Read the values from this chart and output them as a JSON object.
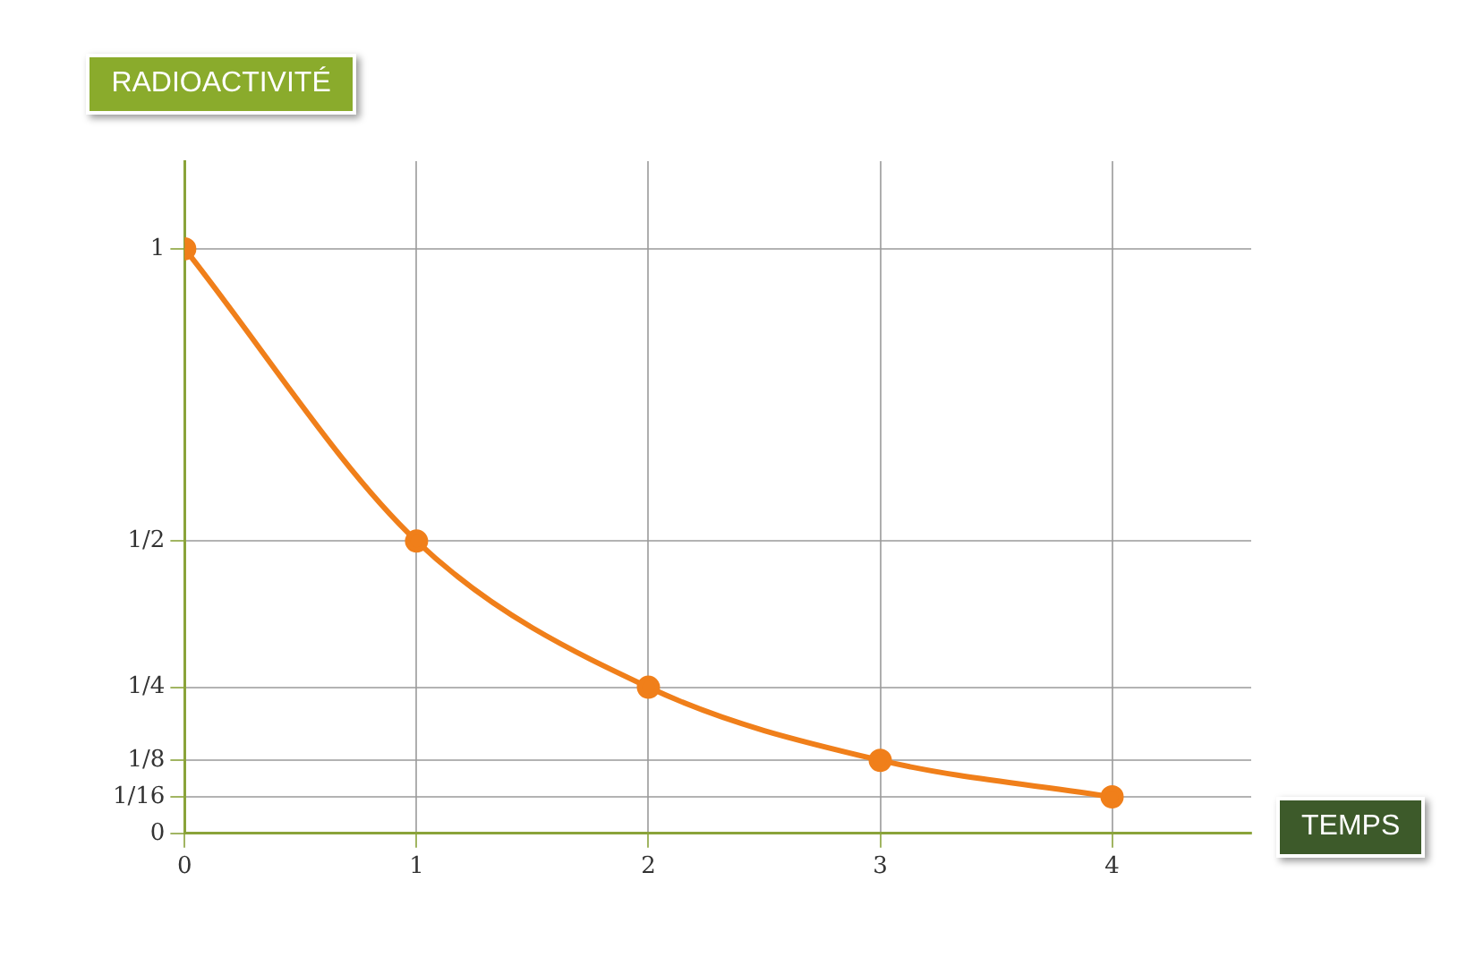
{
  "chart_data": {
    "type": "line",
    "xlabel": "TEMPS",
    "ylabel": "RADIOACTIVITÉ",
    "x": [
      0,
      1,
      2,
      3,
      4
    ],
    "series": [
      {
        "color": "#f07f1a",
        "values": [
          1,
          0.5,
          0.25,
          0.125,
          0.0625
        ]
      }
    ],
    "xlim": [
      0,
      4.6
    ],
    "xticks": [
      0,
      1,
      2,
      3,
      4
    ],
    "ylim": [
      0,
      1.15
    ],
    "yticks": [
      0,
      {
        "value": 0.0625,
        "label": "1/16"
      },
      {
        "value": 0.125,
        "label": "1/8"
      },
      {
        "value": 0.25,
        "label": "1/4"
      },
      {
        "value": 0.5,
        "label": "1/2"
      },
      1
    ],
    "grid": true,
    "marker": "circle",
    "line_style": "solid",
    "legend": false
  }
}
